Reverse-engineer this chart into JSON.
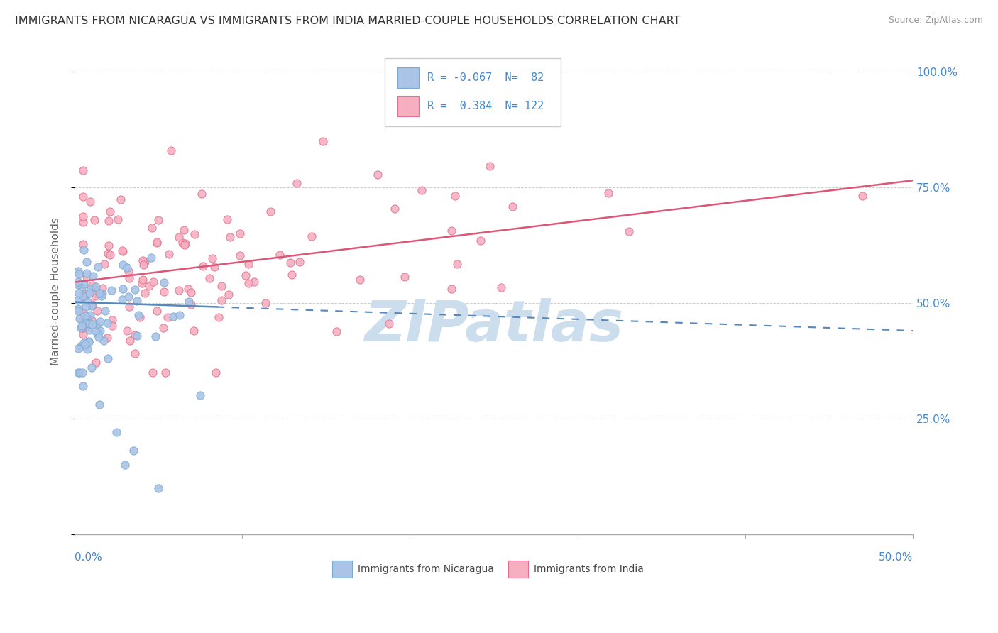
{
  "title": "IMMIGRANTS FROM NICARAGUA VS IMMIGRANTS FROM INDIA MARRIED-COUPLE HOUSEHOLDS CORRELATION CHART",
  "source": "Source: ZipAtlas.com",
  "ylabel": "Married-couple Households",
  "xlim": [
    0.0,
    0.5
  ],
  "ylim": [
    0.0,
    1.05
  ],
  "r_nicaragua": -0.067,
  "n_nicaragua": 82,
  "r_india": 0.384,
  "n_india": 122,
  "color_nicaragua": "#aac4e8",
  "color_india": "#f5afc0",
  "edge_nicaragua": "#7aaad0",
  "edge_india": "#e07090",
  "trend_nicaragua_color": "#5588bb",
  "trend_india_color": "#dd5577",
  "watermark": "ZIPatlas",
  "watermark_color": "#ccdded",
  "legend_label_nicaragua": "Immigrants from Nicaragua",
  "legend_label_india": "Immigrants from India",
  "nic_trend_x0": 0.0,
  "nic_trend_y0": 0.502,
  "nic_trend_x1": 0.5,
  "nic_trend_y1": 0.44,
  "india_trend_x0": 0.0,
  "india_trend_y0": 0.545,
  "india_trend_x1": 0.5,
  "india_trend_y1": 0.765
}
